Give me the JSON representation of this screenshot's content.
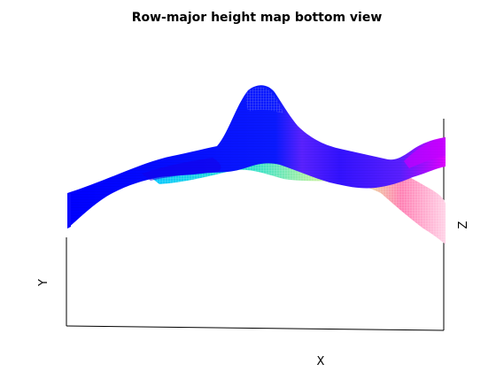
{
  "chart_data": {
    "type": "surface",
    "title": "Row-major height map bottom view",
    "xlabel": "X",
    "ylabel": "Y",
    "zlabel": "Z",
    "grid": false,
    "colormap": [
      "#0000ff",
      "#00ffff",
      "#ff00ff"
    ],
    "colormap_names": [
      "blue",
      "cyan",
      "magenta"
    ]
  }
}
